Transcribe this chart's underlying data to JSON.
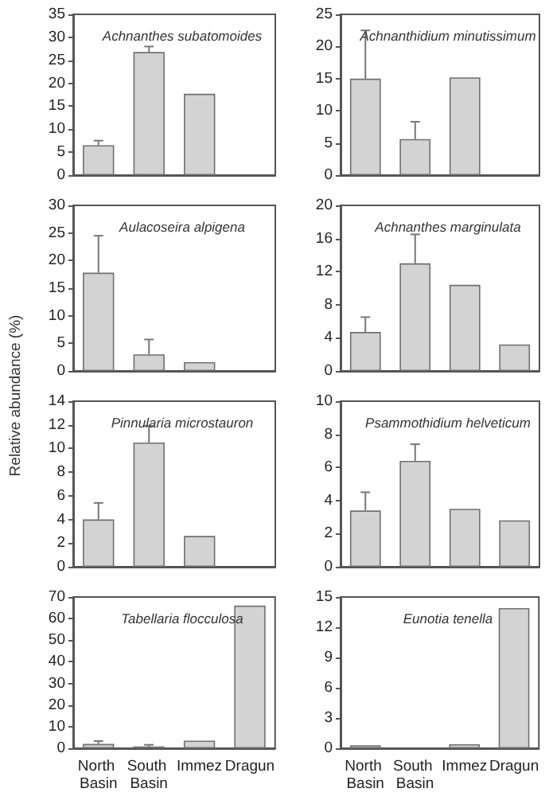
{
  "chart_data": [
    {
      "type": "bar",
      "title": "Achnanthes subatomoides",
      "categories": [
        "North Basin",
        "South Basin",
        "Immez",
        "Dragun"
      ],
      "values": [
        6.5,
        26.8,
        17.7,
        null
      ],
      "errors": [
        [
          6.5,
          7.5
        ],
        [
          26.8,
          28
        ],
        null,
        null
      ],
      "color": "#d3d3d3",
      "ylim": [
        0,
        35
      ],
      "yticks": [
        0,
        5,
        10,
        15,
        20,
        25,
        30,
        35
      ],
      "tick_labels": "y"
    },
    {
      "type": "bar",
      "title": "Achnanthidium minutissimum",
      "categories": [
        "North Basin",
        "South Basin",
        "Immez",
        "Dragun"
      ],
      "values": [
        15,
        5.6,
        15.2,
        null
      ],
      "errors": [
        [
          15,
          22.5
        ],
        [
          5.6,
          8.3
        ],
        null,
        null
      ],
      "color": "#d3d3d3",
      "ylim": [
        0,
        25
      ],
      "yticks": [
        0,
        5,
        10,
        15,
        20,
        25
      ],
      "tick_labels": "y"
    },
    {
      "type": "bar",
      "title": "Aulacoseira alpigena",
      "ylabel": "Relative abundance (%)",
      "categories": [
        "North Basin",
        "South Basin",
        "Immez",
        "Dragun"
      ],
      "values": [
        17.8,
        3,
        1.6,
        null
      ],
      "errors": [
        [
          17.8,
          24.5
        ],
        [
          3,
          5.7
        ],
        null,
        null
      ],
      "color": "#d3d3d3",
      "ylim": [
        0,
        30
      ],
      "yticks": [
        0,
        5,
        10,
        15,
        20,
        25,
        30
      ],
      "tick_labels": "y"
    },
    {
      "type": "bar",
      "title": "Achnanthes marginulata",
      "categories": [
        "North Basin",
        "South Basin",
        "Immez",
        "Dragun"
      ],
      "values": [
        4.7,
        13,
        10.4,
        3.2
      ],
      "errors": [
        [
          4.7,
          6.5
        ],
        [
          13,
          16.5
        ],
        null,
        null
      ],
      "color": "#d3d3d3",
      "ylim": [
        0,
        20
      ],
      "yticks": [
        0,
        4,
        8,
        12,
        16,
        20
      ],
      "tick_labels": "y"
    },
    {
      "type": "bar",
      "title": "Pinnularia microstauron",
      "categories": [
        "North Basin",
        "South Basin",
        "Immez",
        "Dragun"
      ],
      "values": [
        4,
        10.5,
        2.6,
        null
      ],
      "errors": [
        [
          4,
          5.4
        ],
        [
          10.5,
          11.9
        ],
        null,
        null
      ],
      "color": "#d3d3d3",
      "ylim": [
        0,
        14
      ],
      "yticks": [
        0,
        2,
        4,
        6,
        8,
        10,
        12,
        14
      ],
      "tick_labels": "y"
    },
    {
      "type": "bar",
      "title": "Psammothidium helveticum",
      "categories": [
        "North Basin",
        "South Basin",
        "Immez",
        "Dragun"
      ],
      "values": [
        3.4,
        6.4,
        3.5,
        2.8
      ],
      "errors": [
        [
          3.4,
          4.5
        ],
        [
          6.4,
          7.4
        ],
        null,
        null
      ],
      "color": "#d3d3d3",
      "ylim": [
        0,
        10
      ],
      "yticks": [
        0,
        2,
        4,
        6,
        8,
        10
      ],
      "tick_labels": "y"
    },
    {
      "type": "bar",
      "title": "Tabellaria flocculosa",
      "categories": [
        "North Basin",
        "South Basin",
        "Immez",
        "Dragun"
      ],
      "values": [
        2,
        0.8,
        3.5,
        66
      ],
      "errors": [
        [
          2,
          3.3
        ],
        [
          0.8,
          1.6
        ],
        null,
        null
      ],
      "color": "#d3d3d3",
      "ylim": [
        0,
        70
      ],
      "yticks": [
        0,
        10,
        20,
        30,
        40,
        50,
        60,
        70
      ]
    },
    {
      "type": "bar",
      "title": "Eunotia tenella",
      "categories": [
        "North Basin",
        "South Basin",
        "Immez",
        "Dragun"
      ],
      "values": [
        0.3,
        null,
        0.4,
        13.9
      ],
      "color": "#d3d3d3",
      "ylim": [
        0,
        15
      ],
      "yticks": [
        0,
        3,
        6,
        9,
        12,
        15
      ]
    }
  ]
}
